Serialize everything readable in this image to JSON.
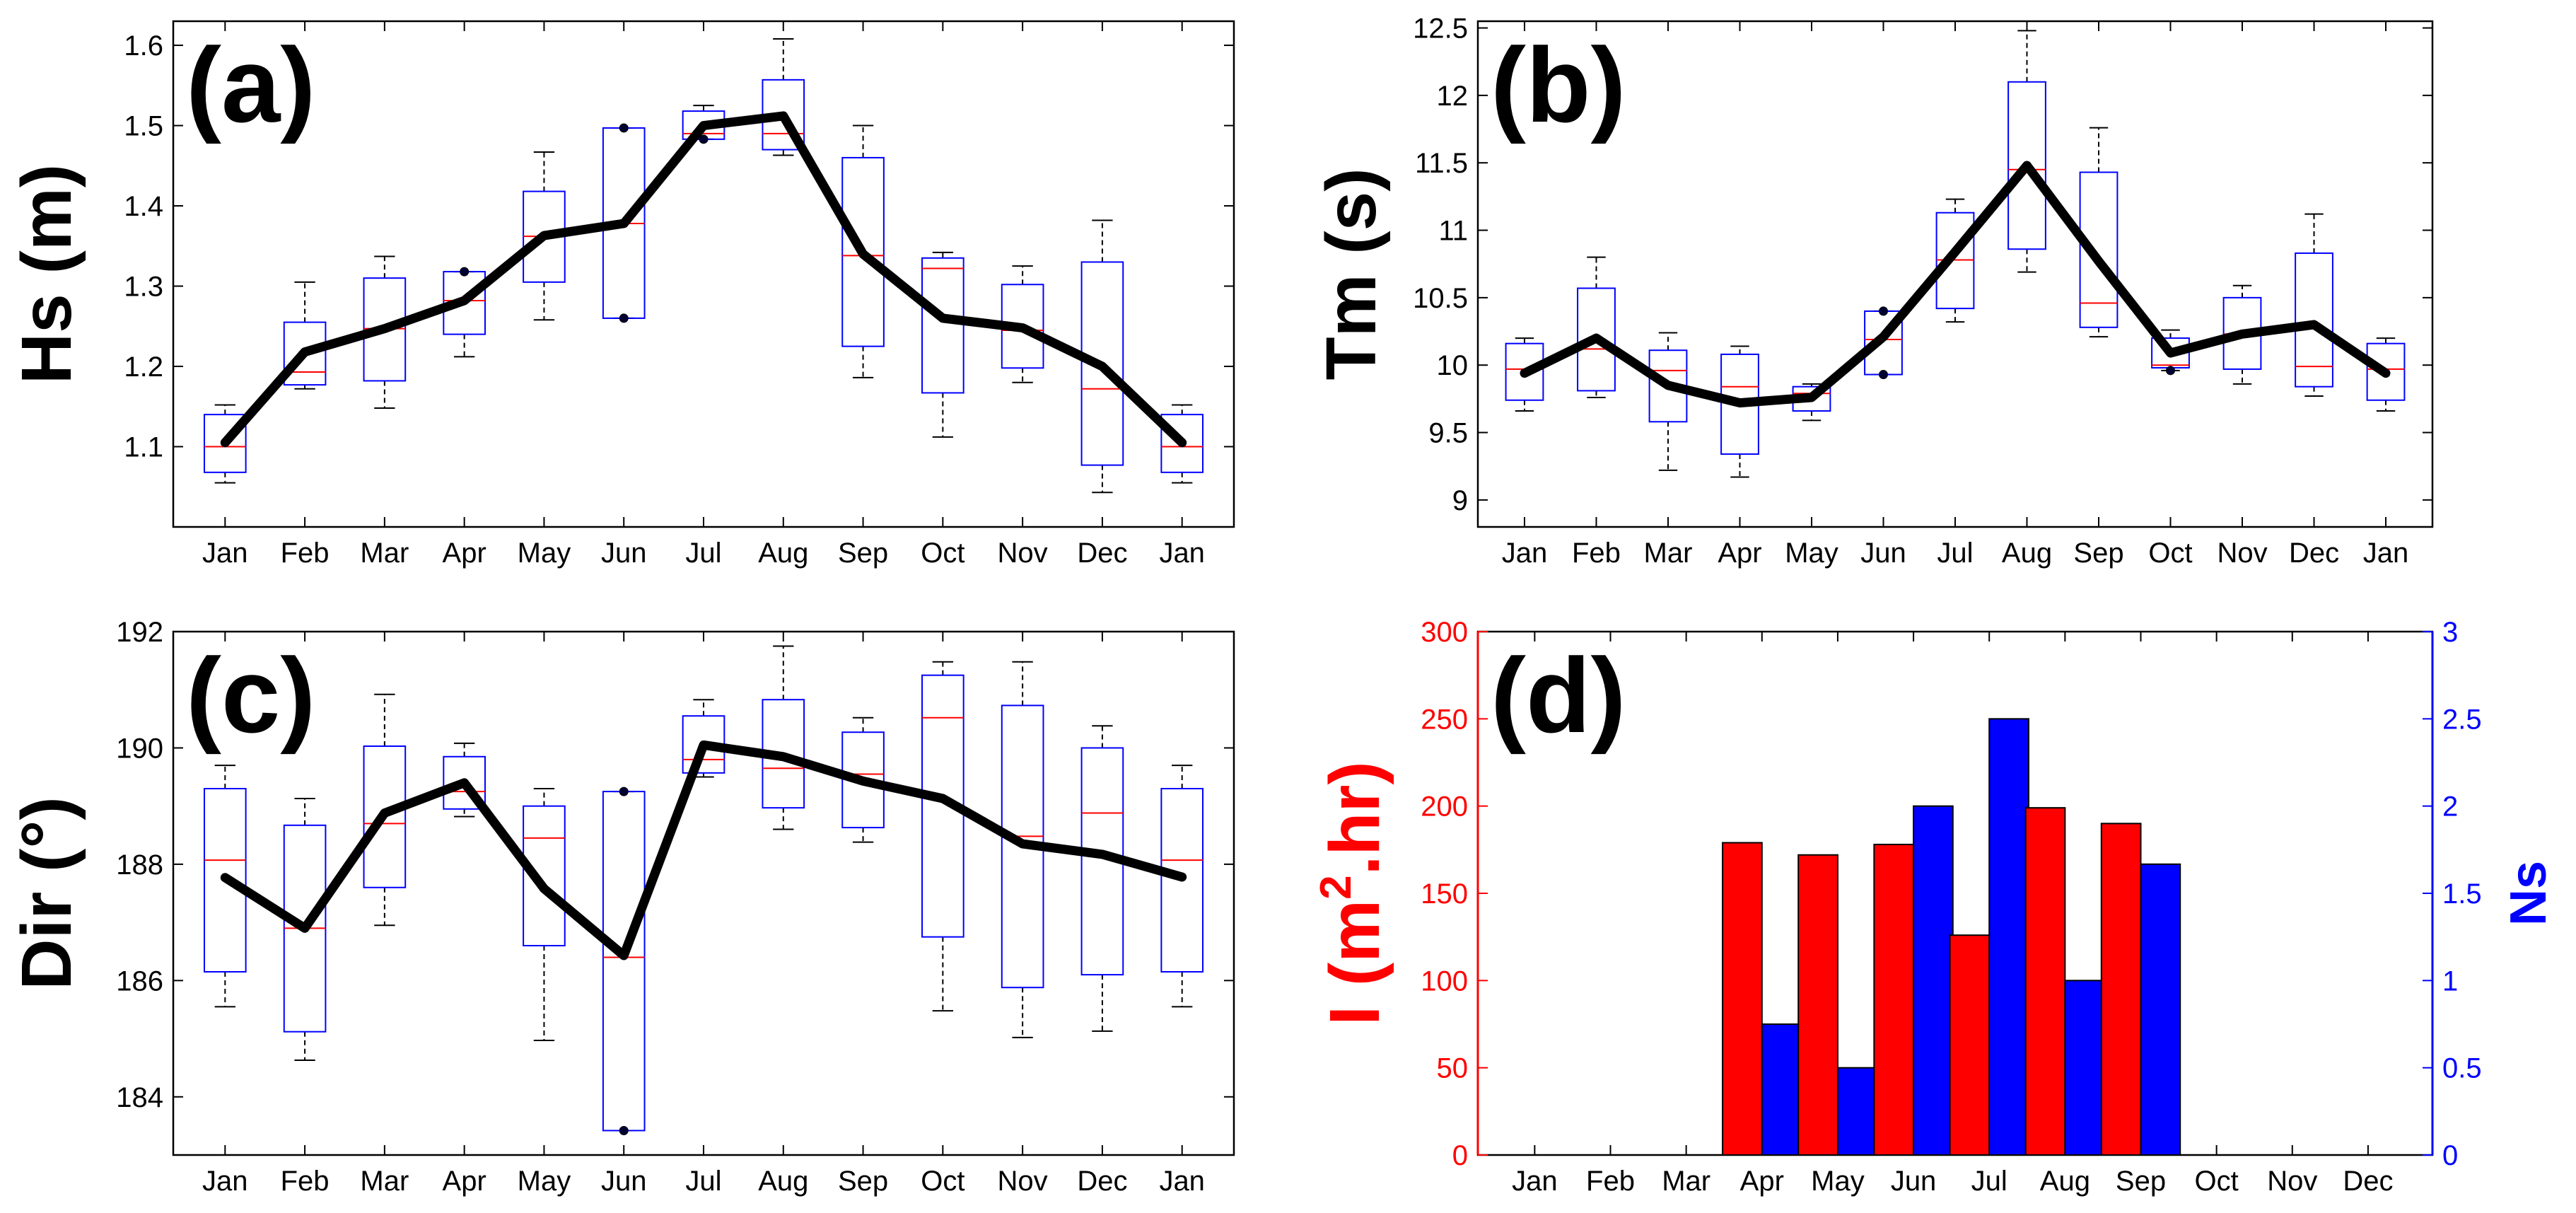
{
  "months_13": [
    "Jan",
    "Feb",
    "Mar",
    "Apr",
    "May",
    "Jun",
    "Jul",
    "Aug",
    "Sep",
    "Oct",
    "Nov",
    "Dec",
    "Jan"
  ],
  "months_12": [
    "Jan",
    "Feb",
    "Mar",
    "Apr",
    "May",
    "Jun",
    "Jul",
    "Aug",
    "Sep",
    "Oct",
    "Nov",
    "Dec"
  ],
  "colors": {
    "box": "#0000ff",
    "median": "#ff0000",
    "whisker": "#000000",
    "mean_line": "#000000",
    "red_axis": "#ff0000",
    "blue_axis": "#0000ff"
  },
  "chart_data": [
    {
      "id": "a",
      "type": "boxplot",
      "panel_label": "(a)",
      "ylabel": "Hs (m)",
      "ylim": [
        1.0,
        1.63
      ],
      "yticks": [
        1.1,
        1.2,
        1.3,
        1.4,
        1.5,
        1.6
      ],
      "ytick_labels": [
        "1.1",
        "1.2",
        "1.3",
        "1.4",
        "1.5",
        "1.6"
      ],
      "categories": [
        "Jan",
        "Feb",
        "Mar",
        "Apr",
        "May",
        "Jun",
        "Jul",
        "Aug",
        "Sep",
        "Oct",
        "Nov",
        "Dec",
        "Jan"
      ],
      "boxes": [
        {
          "wmin": 1.055,
          "q1": 1.068,
          "med": 1.1,
          "q3": 1.14,
          "wmax": 1.152,
          "out": []
        },
        {
          "wmin": 1.172,
          "q1": 1.177,
          "med": 1.193,
          "q3": 1.255,
          "wmax": 1.305,
          "out": []
        },
        {
          "wmin": 1.148,
          "q1": 1.182,
          "med": 1.247,
          "q3": 1.31,
          "wmax": 1.337,
          "out": []
        },
        {
          "wmin": 1.212,
          "q1": 1.24,
          "med": 1.282,
          "q3": 1.318,
          "wmax": 1.318,
          "out": [
            1.318
          ]
        },
        {
          "wmin": 1.258,
          "q1": 1.305,
          "med": 1.362,
          "q3": 1.418,
          "wmax": 1.467,
          "out": []
        },
        {
          "wmin": 1.26,
          "q1": 1.26,
          "med": 1.378,
          "q3": 1.497,
          "wmax": 1.497,
          "out": [
            1.26,
            1.497
          ]
        },
        {
          "wmin": 1.483,
          "q1": 1.483,
          "med": 1.49,
          "q3": 1.518,
          "wmax": 1.525,
          "out": [
            1.483
          ]
        },
        {
          "wmin": 1.463,
          "q1": 1.47,
          "med": 1.49,
          "q3": 1.557,
          "wmax": 1.608,
          "out": []
        },
        {
          "wmin": 1.186,
          "q1": 1.225,
          "med": 1.338,
          "q3": 1.46,
          "wmax": 1.5,
          "out": []
        },
        {
          "wmin": 1.112,
          "q1": 1.167,
          "med": 1.322,
          "q3": 1.335,
          "wmax": 1.342,
          "out": []
        },
        {
          "wmin": 1.18,
          "q1": 1.198,
          "med": 1.245,
          "q3": 1.302,
          "wmax": 1.325,
          "out": []
        },
        {
          "wmin": 1.043,
          "q1": 1.077,
          "med": 1.172,
          "q3": 1.33,
          "wmax": 1.382,
          "out": []
        },
        {
          "wmin": 1.055,
          "q1": 1.068,
          "med": 1.1,
          "q3": 1.14,
          "wmax": 1.152,
          "out": []
        }
      ],
      "mean": [
        1.105,
        1.218,
        1.247,
        1.282,
        1.363,
        1.378,
        1.5,
        1.512,
        1.34,
        1.26,
        1.248,
        1.2,
        1.105
      ]
    },
    {
      "id": "b",
      "type": "boxplot",
      "panel_label": "(b)",
      "ylabel": "Tm (s)",
      "ylim": [
        8.8,
        12.55
      ],
      "yticks": [
        9,
        9.5,
        10,
        10.5,
        11,
        11.5,
        12,
        12.5
      ],
      "ytick_labels": [
        "9",
        "9.5",
        "10",
        "10.5",
        "11",
        "11.5",
        "12",
        "12.5"
      ],
      "categories": [
        "Jan",
        "Feb",
        "Mar",
        "Apr",
        "May",
        "Jun",
        "Jul",
        "Aug",
        "Sep",
        "Oct",
        "Nov",
        "Dec",
        "Jan"
      ],
      "boxes": [
        {
          "wmin": 9.66,
          "q1": 9.74,
          "med": 9.97,
          "q3": 10.16,
          "wmax": 10.2,
          "out": []
        },
        {
          "wmin": 9.76,
          "q1": 9.81,
          "med": 10.12,
          "q3": 10.57,
          "wmax": 10.8,
          "out": []
        },
        {
          "wmin": 9.22,
          "q1": 9.58,
          "med": 9.96,
          "q3": 10.11,
          "wmax": 10.24,
          "out": []
        },
        {
          "wmin": 9.17,
          "q1": 9.34,
          "med": 9.84,
          "q3": 10.08,
          "wmax": 10.14,
          "out": []
        },
        {
          "wmin": 9.59,
          "q1": 9.66,
          "med": 9.79,
          "q3": 9.84,
          "wmax": 9.86,
          "out": []
        },
        {
          "wmin": 9.93,
          "q1": 9.93,
          "med": 10.19,
          "q3": 10.4,
          "wmax": 10.4,
          "out": [
            9.93,
            10.4
          ]
        },
        {
          "wmin": 10.32,
          "q1": 10.42,
          "med": 10.78,
          "q3": 11.13,
          "wmax": 11.23,
          "out": []
        },
        {
          "wmin": 10.69,
          "q1": 10.86,
          "med": 11.45,
          "q3": 12.1,
          "wmax": 12.48,
          "out": []
        },
        {
          "wmin": 10.21,
          "q1": 10.28,
          "med": 10.46,
          "q3": 11.43,
          "wmax": 11.76,
          "out": []
        },
        {
          "wmin": 9.96,
          "q1": 9.98,
          "med": 10.0,
          "q3": 10.2,
          "wmax": 10.26,
          "out": [
            9.96
          ]
        },
        {
          "wmin": 9.86,
          "q1": 9.97,
          "med": 10.23,
          "q3": 10.5,
          "wmax": 10.59,
          "out": []
        },
        {
          "wmin": 9.77,
          "q1": 9.84,
          "med": 9.99,
          "q3": 10.83,
          "wmax": 11.12,
          "out": []
        },
        {
          "wmin": 9.66,
          "q1": 9.74,
          "med": 9.97,
          "q3": 10.16,
          "wmax": 10.2,
          "out": []
        }
      ],
      "mean": [
        9.94,
        10.2,
        9.85,
        9.72,
        9.76,
        10.21,
        10.84,
        11.48,
        10.77,
        10.09,
        10.23,
        10.3,
        9.94
      ]
    },
    {
      "id": "c",
      "type": "boxplot",
      "panel_label": "(c)",
      "ylabel": "Dir (°)",
      "ylim": [
        183,
        192
      ],
      "yticks": [
        184,
        186,
        188,
        190,
        192
      ],
      "ytick_labels": [
        "184",
        "186",
        "188",
        "190",
        "192"
      ],
      "categories": [
        "Jan",
        "Feb",
        "Mar",
        "Apr",
        "May",
        "Jun",
        "Jul",
        "Aug",
        "Sep",
        "Oct",
        "Nov",
        "Dec",
        "Jan"
      ],
      "boxes": [
        {
          "wmin": 185.55,
          "q1": 186.15,
          "med": 188.07,
          "q3": 189.3,
          "wmax": 189.7,
          "out": []
        },
        {
          "wmin": 184.63,
          "q1": 185.12,
          "med": 186.9,
          "q3": 188.67,
          "wmax": 189.13,
          "out": []
        },
        {
          "wmin": 186.95,
          "q1": 187.6,
          "med": 188.7,
          "q3": 190.03,
          "wmax": 190.92,
          "out": []
        },
        {
          "wmin": 188.82,
          "q1": 188.95,
          "med": 189.25,
          "q3": 189.85,
          "wmax": 190.08,
          "out": []
        },
        {
          "wmin": 184.97,
          "q1": 186.6,
          "med": 188.45,
          "q3": 189.0,
          "wmax": 189.3,
          "out": []
        },
        {
          "wmin": 183.42,
          "q1": 183.42,
          "med": 186.4,
          "q3": 189.25,
          "wmax": 189.25,
          "out": [
            183.42,
            189.25
          ]
        },
        {
          "wmin": 189.5,
          "q1": 189.57,
          "med": 189.8,
          "q3": 190.55,
          "wmax": 190.83,
          "out": []
        },
        {
          "wmin": 188.6,
          "q1": 188.97,
          "med": 189.65,
          "q3": 190.83,
          "wmax": 191.75,
          "out": []
        },
        {
          "wmin": 188.38,
          "q1": 188.63,
          "med": 189.55,
          "q3": 190.27,
          "wmax": 190.52,
          "out": []
        },
        {
          "wmin": 185.48,
          "q1": 186.75,
          "med": 190.52,
          "q3": 191.25,
          "wmax": 191.48,
          "out": []
        },
        {
          "wmin": 185.02,
          "q1": 185.88,
          "med": 188.48,
          "q3": 190.73,
          "wmax": 191.48,
          "out": []
        },
        {
          "wmin": 185.13,
          "q1": 186.1,
          "med": 188.88,
          "q3": 190.0,
          "wmax": 190.38,
          "out": []
        },
        {
          "wmin": 185.55,
          "q1": 186.15,
          "med": 188.07,
          "q3": 189.3,
          "wmax": 189.7,
          "out": []
        }
      ],
      "mean": [
        187.77,
        186.9,
        188.88,
        189.4,
        187.58,
        186.43,
        190.05,
        189.85,
        189.43,
        189.13,
        188.35,
        188.17,
        187.78
      ]
    },
    {
      "id": "d",
      "type": "bar",
      "panel_label": "(d)",
      "ylabel": "I (m²·hr)",
      "ylabel_parts": {
        "main": "I (m",
        "sup": "2",
        "tail": ".hr)"
      },
      "ylabel_right": "Ns",
      "ylim": [
        0,
        300
      ],
      "ylim_right": [
        0,
        3
      ],
      "yticks": [
        0,
        50,
        100,
        150,
        200,
        250,
        300
      ],
      "ytick_labels": [
        "0",
        "50",
        "100",
        "150",
        "200",
        "250",
        "300"
      ],
      "yticks_right": [
        0,
        0.5,
        1,
        1.5,
        2,
        2.5,
        3
      ],
      "ytick_labels_right": [
        "0",
        "0.5",
        "1",
        "1.5",
        "2",
        "2.5",
        "3"
      ],
      "categories": [
        "Jan",
        "Feb",
        "Mar",
        "Apr",
        "May",
        "Jun",
        "Jul",
        "Aug",
        "Sep",
        "Oct",
        "Nov",
        "Dec"
      ],
      "series": [
        {
          "axis": "left",
          "color": "#ff0000",
          "values": [
            0,
            0,
            0,
            179,
            172,
            178,
            126,
            199,
            190,
            0,
            0,
            0
          ]
        },
        {
          "axis": "right",
          "color": "#0000ff",
          "values": [
            0,
            0,
            0,
            0.75,
            0.5,
            2,
            2.5,
            1,
            1.667,
            0,
            0,
            0
          ]
        }
      ]
    }
  ]
}
